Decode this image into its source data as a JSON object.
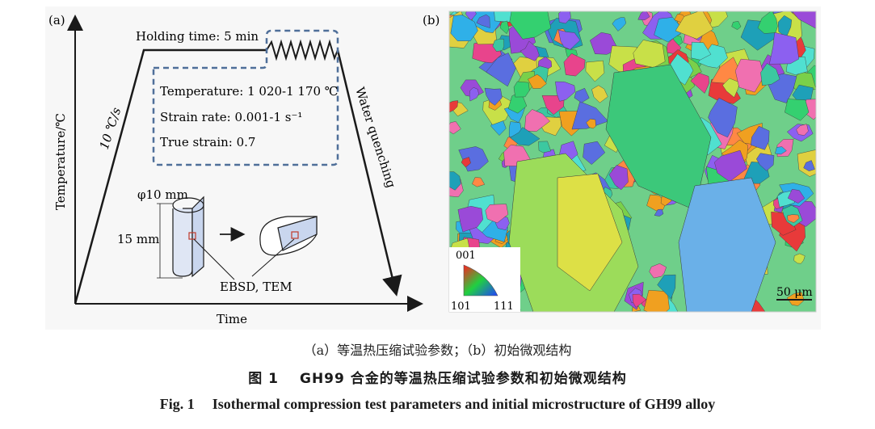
{
  "panel_a": {
    "label": "(a)",
    "y_axis_label": "Temperature/℃",
    "x_axis_label": "Time",
    "heating_rate": "10 ℃/s",
    "holding": "Holding time: 5 min",
    "params": {
      "temperature": "Temperature: 1 020-1 170 ℃",
      "strain_rate": "Strain rate: 0.001-1 s⁻¹",
      "true_strain": "True strain: 0.7"
    },
    "quench": "Water quenching",
    "diameter": "φ10 mm",
    "height": "15 mm",
    "analysis": "EBSD, TEM"
  },
  "panel_b": {
    "label": "(b)",
    "legend": {
      "top": "001",
      "left": "101",
      "right": "111"
    },
    "scalebar": "50 μm"
  },
  "captions": {
    "sub": "（a）等温热压缩试验参数；（b）初始微观结构",
    "cn_num": "图 1",
    "cn_title": "GH99 合金的等温热压缩试验参数和初始微观结构",
    "en_num": "Fig. 1",
    "en_title": "Isothermal compression test parameters and initial microstructure of GH99 alloy"
  },
  "colors": {
    "dashed_box": "#4f6f99",
    "axis": "#1a1a1a",
    "sample": "#c9d6ee",
    "ebsd_marker": "#c0392b"
  }
}
